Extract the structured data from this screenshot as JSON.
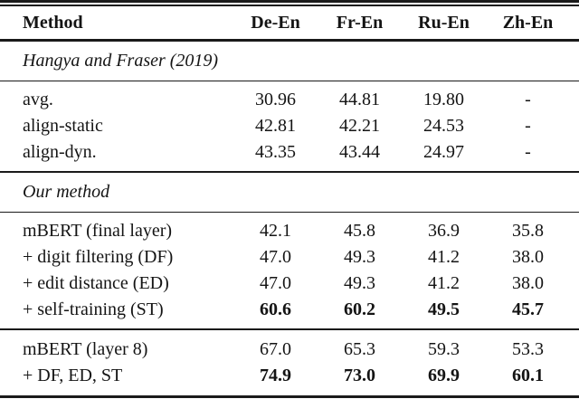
{
  "table": {
    "header": {
      "method": "Method",
      "cols": [
        "De-En",
        "Fr-En",
        "Ru-En",
        "Zh-En"
      ]
    },
    "sections": {
      "hangya_label": "Hangya and Fraser (2019)",
      "ours_label": "Our method"
    },
    "rows": [
      {
        "method": "avg.",
        "values": [
          "30.96",
          "44.81",
          "19.80",
          "-"
        ]
      },
      {
        "method": "align-static",
        "values": [
          "42.81",
          "42.21",
          "24.53",
          "-"
        ]
      },
      {
        "method": "align-dyn.",
        "values": [
          "43.35",
          "43.44",
          "24.97",
          "-"
        ]
      },
      {
        "method": "mBERT (final layer)",
        "values": [
          "42.1",
          "45.8",
          "36.9",
          "35.8"
        ]
      },
      {
        "method": "+ digit filtering (DF)",
        "values": [
          "47.0",
          "49.3",
          "41.2",
          "38.0"
        ]
      },
      {
        "method": "+ edit distance (ED)",
        "values": [
          "47.0",
          "49.3",
          "41.2",
          "38.0"
        ]
      },
      {
        "method": "+ self-training (ST)",
        "values": [
          "60.6",
          "60.2",
          "49.5",
          "45.7"
        ],
        "bold_values": true
      },
      {
        "method": "mBERT (layer 8)",
        "values": [
          "67.0",
          "65.3",
          "59.3",
          "53.3"
        ]
      },
      {
        "method": "+ DF, ED, ST",
        "values": [
          "74.9",
          "73.0",
          "69.9",
          "60.1"
        ],
        "bold_values": true
      }
    ],
    "colors": {
      "text": "#141414",
      "rule": "#1a1a1a",
      "background": "#ffffff"
    }
  }
}
